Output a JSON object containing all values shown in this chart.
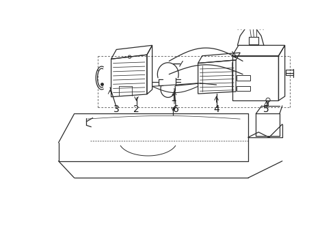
{
  "bg_color": "#ffffff",
  "line_color": "#2a2a2a",
  "label_color": "#111111",
  "fig_width": 4.9,
  "fig_height": 3.6,
  "dpi": 100,
  "label_fontsize": 10,
  "arrow_lw": 0.7,
  "part_lw": 0.9
}
